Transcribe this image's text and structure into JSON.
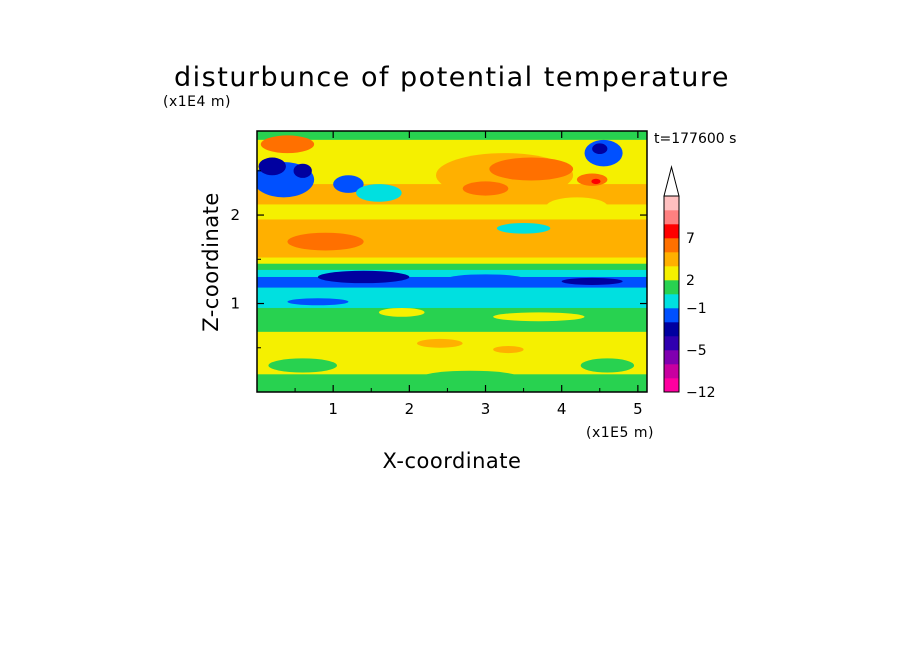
{
  "chart_data": {
    "type": "heatmap",
    "title": "disturbunce of potential temperature",
    "xlabel": "X-coordinate",
    "ylabel": "Z-coordinate",
    "x_unit": "(x1E5 m)",
    "y_unit": "(x1E4 m)",
    "time_label": "t=177600 s",
    "xlim": [
      0,
      5.12
    ],
    "ylim": [
      0,
      2.95
    ],
    "x_ticks": [
      1,
      2,
      3,
      4,
      5
    ],
    "y_ticks": [
      1,
      2
    ],
    "bands": [
      {
        "y0": 2.85,
        "y1": 2.95,
        "color": "#28d250"
      },
      {
        "y0": 2.72,
        "y1": 2.85,
        "color": "#f5f000"
      },
      {
        "y0": 2.55,
        "y1": 2.72,
        "color": "#f5f000"
      },
      {
        "y0": 2.35,
        "y1": 2.55,
        "color": "#f5f000"
      },
      {
        "y0": 2.12,
        "y1": 2.35,
        "color": "#ffb000"
      },
      {
        "y0": 1.95,
        "y1": 2.12,
        "color": "#f5f000"
      },
      {
        "y0": 1.75,
        "y1": 1.95,
        "color": "#ffb000"
      },
      {
        "y0": 1.52,
        "y1": 1.75,
        "color": "#ffb000"
      },
      {
        "y0": 1.45,
        "y1": 1.52,
        "color": "#f5f000"
      },
      {
        "y0": 1.38,
        "y1": 1.45,
        "color": "#28d250"
      },
      {
        "y0": 1.3,
        "y1": 1.38,
        "color": "#00e0e0"
      },
      {
        "y0": 1.18,
        "y1": 1.3,
        "color": "#0050ff"
      },
      {
        "y0": 1.05,
        "y1": 1.18,
        "color": "#00e0e0"
      },
      {
        "y0": 0.95,
        "y1": 1.05,
        "color": "#00e0e0"
      },
      {
        "y0": 0.82,
        "y1": 0.95,
        "color": "#28d250"
      },
      {
        "y0": 0.68,
        "y1": 0.82,
        "color": "#28d250"
      },
      {
        "y0": 0.55,
        "y1": 0.68,
        "color": "#f5f000"
      },
      {
        "y0": 0.38,
        "y1": 0.55,
        "color": "#f5f000"
      },
      {
        "y0": 0.2,
        "y1": 0.38,
        "color": "#f5f000"
      },
      {
        "y0": 0.0,
        "y1": 0.2,
        "color": "#28d250"
      }
    ],
    "blobs": [
      {
        "cx": 0.35,
        "cy": 2.4,
        "rx": 0.4,
        "ry": 0.2,
        "color": "#0050ff"
      },
      {
        "cx": 0.2,
        "cy": 2.55,
        "rx": 0.18,
        "ry": 0.1,
        "color": "#0000a0"
      },
      {
        "cx": 0.6,
        "cy": 2.5,
        "rx": 0.12,
        "ry": 0.08,
        "color": "#0000a0"
      },
      {
        "cx": 0.4,
        "cy": 2.8,
        "rx": 0.35,
        "ry": 0.1,
        "color": "#ff7000"
      },
      {
        "cx": 1.2,
        "cy": 2.35,
        "rx": 0.2,
        "ry": 0.1,
        "color": "#0050ff"
      },
      {
        "cx": 1.6,
        "cy": 2.25,
        "rx": 0.3,
        "ry": 0.1,
        "color": "#00e0e0"
      },
      {
        "cx": 3.25,
        "cy": 2.45,
        "rx": 0.9,
        "ry": 0.25,
        "color": "#ffb000"
      },
      {
        "cx": 3.6,
        "cy": 2.52,
        "rx": 0.55,
        "ry": 0.13,
        "color": "#ff7000"
      },
      {
        "cx": 3.0,
        "cy": 2.3,
        "rx": 0.3,
        "ry": 0.08,
        "color": "#ff7000"
      },
      {
        "cx": 4.4,
        "cy": 2.4,
        "rx": 0.2,
        "ry": 0.07,
        "color": "#ff7000"
      },
      {
        "cx": 4.45,
        "cy": 2.38,
        "rx": 0.06,
        "ry": 0.03,
        "color": "#ff0000"
      },
      {
        "cx": 4.55,
        "cy": 2.7,
        "rx": 0.25,
        "ry": 0.15,
        "color": "#0050ff"
      },
      {
        "cx": 4.5,
        "cy": 2.75,
        "rx": 0.1,
        "ry": 0.06,
        "color": "#0000a0"
      },
      {
        "cx": 3.5,
        "cy": 1.85,
        "rx": 0.35,
        "ry": 0.06,
        "color": "#00e0e0"
      },
      {
        "cx": 4.2,
        "cy": 2.1,
        "rx": 0.4,
        "ry": 0.1,
        "color": "#f5f000"
      },
      {
        "cx": 0.9,
        "cy": 1.7,
        "rx": 0.5,
        "ry": 0.1,
        "color": "#ff7000"
      },
      {
        "cx": 1.4,
        "cy": 1.3,
        "rx": 0.6,
        "ry": 0.07,
        "color": "#0000a0"
      },
      {
        "cx": 3.0,
        "cy": 1.28,
        "rx": 0.5,
        "ry": 0.05,
        "color": "#0050ff"
      },
      {
        "cx": 4.4,
        "cy": 1.25,
        "rx": 0.4,
        "ry": 0.04,
        "color": "#0000a0"
      },
      {
        "cx": 0.8,
        "cy": 1.02,
        "rx": 0.4,
        "ry": 0.04,
        "color": "#0050ff"
      },
      {
        "cx": 1.9,
        "cy": 0.9,
        "rx": 0.3,
        "ry": 0.05,
        "color": "#f5f000"
      },
      {
        "cx": 3.7,
        "cy": 0.85,
        "rx": 0.6,
        "ry": 0.05,
        "color": "#f5f000"
      },
      {
        "cx": 0.6,
        "cy": 0.3,
        "rx": 0.45,
        "ry": 0.08,
        "color": "#28d250"
      },
      {
        "cx": 2.8,
        "cy": 0.18,
        "rx": 0.6,
        "ry": 0.06,
        "color": "#28d250"
      },
      {
        "cx": 4.6,
        "cy": 0.3,
        "rx": 0.35,
        "ry": 0.08,
        "color": "#28d250"
      },
      {
        "cx": 2.4,
        "cy": 0.55,
        "rx": 0.3,
        "ry": 0.05,
        "color": "#ffb000"
      },
      {
        "cx": 3.3,
        "cy": 0.48,
        "rx": 0.2,
        "ry": 0.04,
        "color": "#ffb000"
      }
    ],
    "colorbar": {
      "colors": [
        "#ff00a0",
        "#c800a0",
        "#8000b0",
        "#3000b0",
        "#0000a0",
        "#0050ff",
        "#00e0e0",
        "#28d250",
        "#f5f000",
        "#ffb000",
        "#ff7000",
        "#ff0000",
        "#ff8080",
        "#ffc0c0"
      ],
      "labels": [
        "-12",
        "-5",
        "-1",
        "2",
        "7"
      ],
      "label_index": [
        0,
        3,
        6,
        8,
        11
      ]
    }
  }
}
